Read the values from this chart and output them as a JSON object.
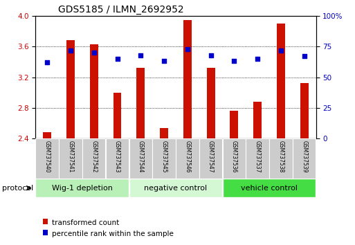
{
  "title": "GDS5185 / ILMN_2692952",
  "samples": [
    "GSM737540",
    "GSM737541",
    "GSM737542",
    "GSM737543",
    "GSM737544",
    "GSM737545",
    "GSM737546",
    "GSM737547",
    "GSM737536",
    "GSM737537",
    "GSM737538",
    "GSM737539"
  ],
  "bar_values": [
    2.48,
    3.68,
    3.63,
    3.0,
    3.32,
    2.54,
    3.95,
    3.32,
    2.76,
    2.88,
    3.9,
    3.12
  ],
  "dot_values_pct": [
    62,
    72,
    70,
    65,
    68,
    63,
    73,
    68,
    63,
    65,
    72,
    67
  ],
  "ylim_left": [
    2.4,
    4.0
  ],
  "ylim_right": [
    0,
    100
  ],
  "yticks_left": [
    2.4,
    2.8,
    3.2,
    3.6,
    4.0
  ],
  "yticks_right": [
    0,
    25,
    50,
    75,
    100
  ],
  "ytick_right_labels": [
    "0",
    "25",
    "50",
    "75",
    "100%"
  ],
  "bar_color": "#cc1100",
  "dot_color": "#0000cc",
  "bar_width": 0.35,
  "groups": [
    {
      "label": "Wig-1 depletion",
      "start": 0,
      "end": 3,
      "color": "#b8f0b8"
    },
    {
      "label": "negative control",
      "start": 4,
      "end": 7,
      "color": "#d4f7d4"
    },
    {
      "label": "vehicle control",
      "start": 8,
      "end": 11,
      "color": "#44dd44"
    }
  ],
  "protocol_label": "protocol",
  "legend_bar_label": "transformed count",
  "legend_dot_label": "percentile rank within the sample",
  "tick_label_color_left": "#cc0000",
  "tick_label_color_right": "#0000bb",
  "sample_box_color": "#cccccc",
  "title_fontsize": 10,
  "tick_fontsize": 7.5,
  "sample_fontsize": 5.5,
  "group_fontsize": 8,
  "legend_fontsize": 7.5
}
